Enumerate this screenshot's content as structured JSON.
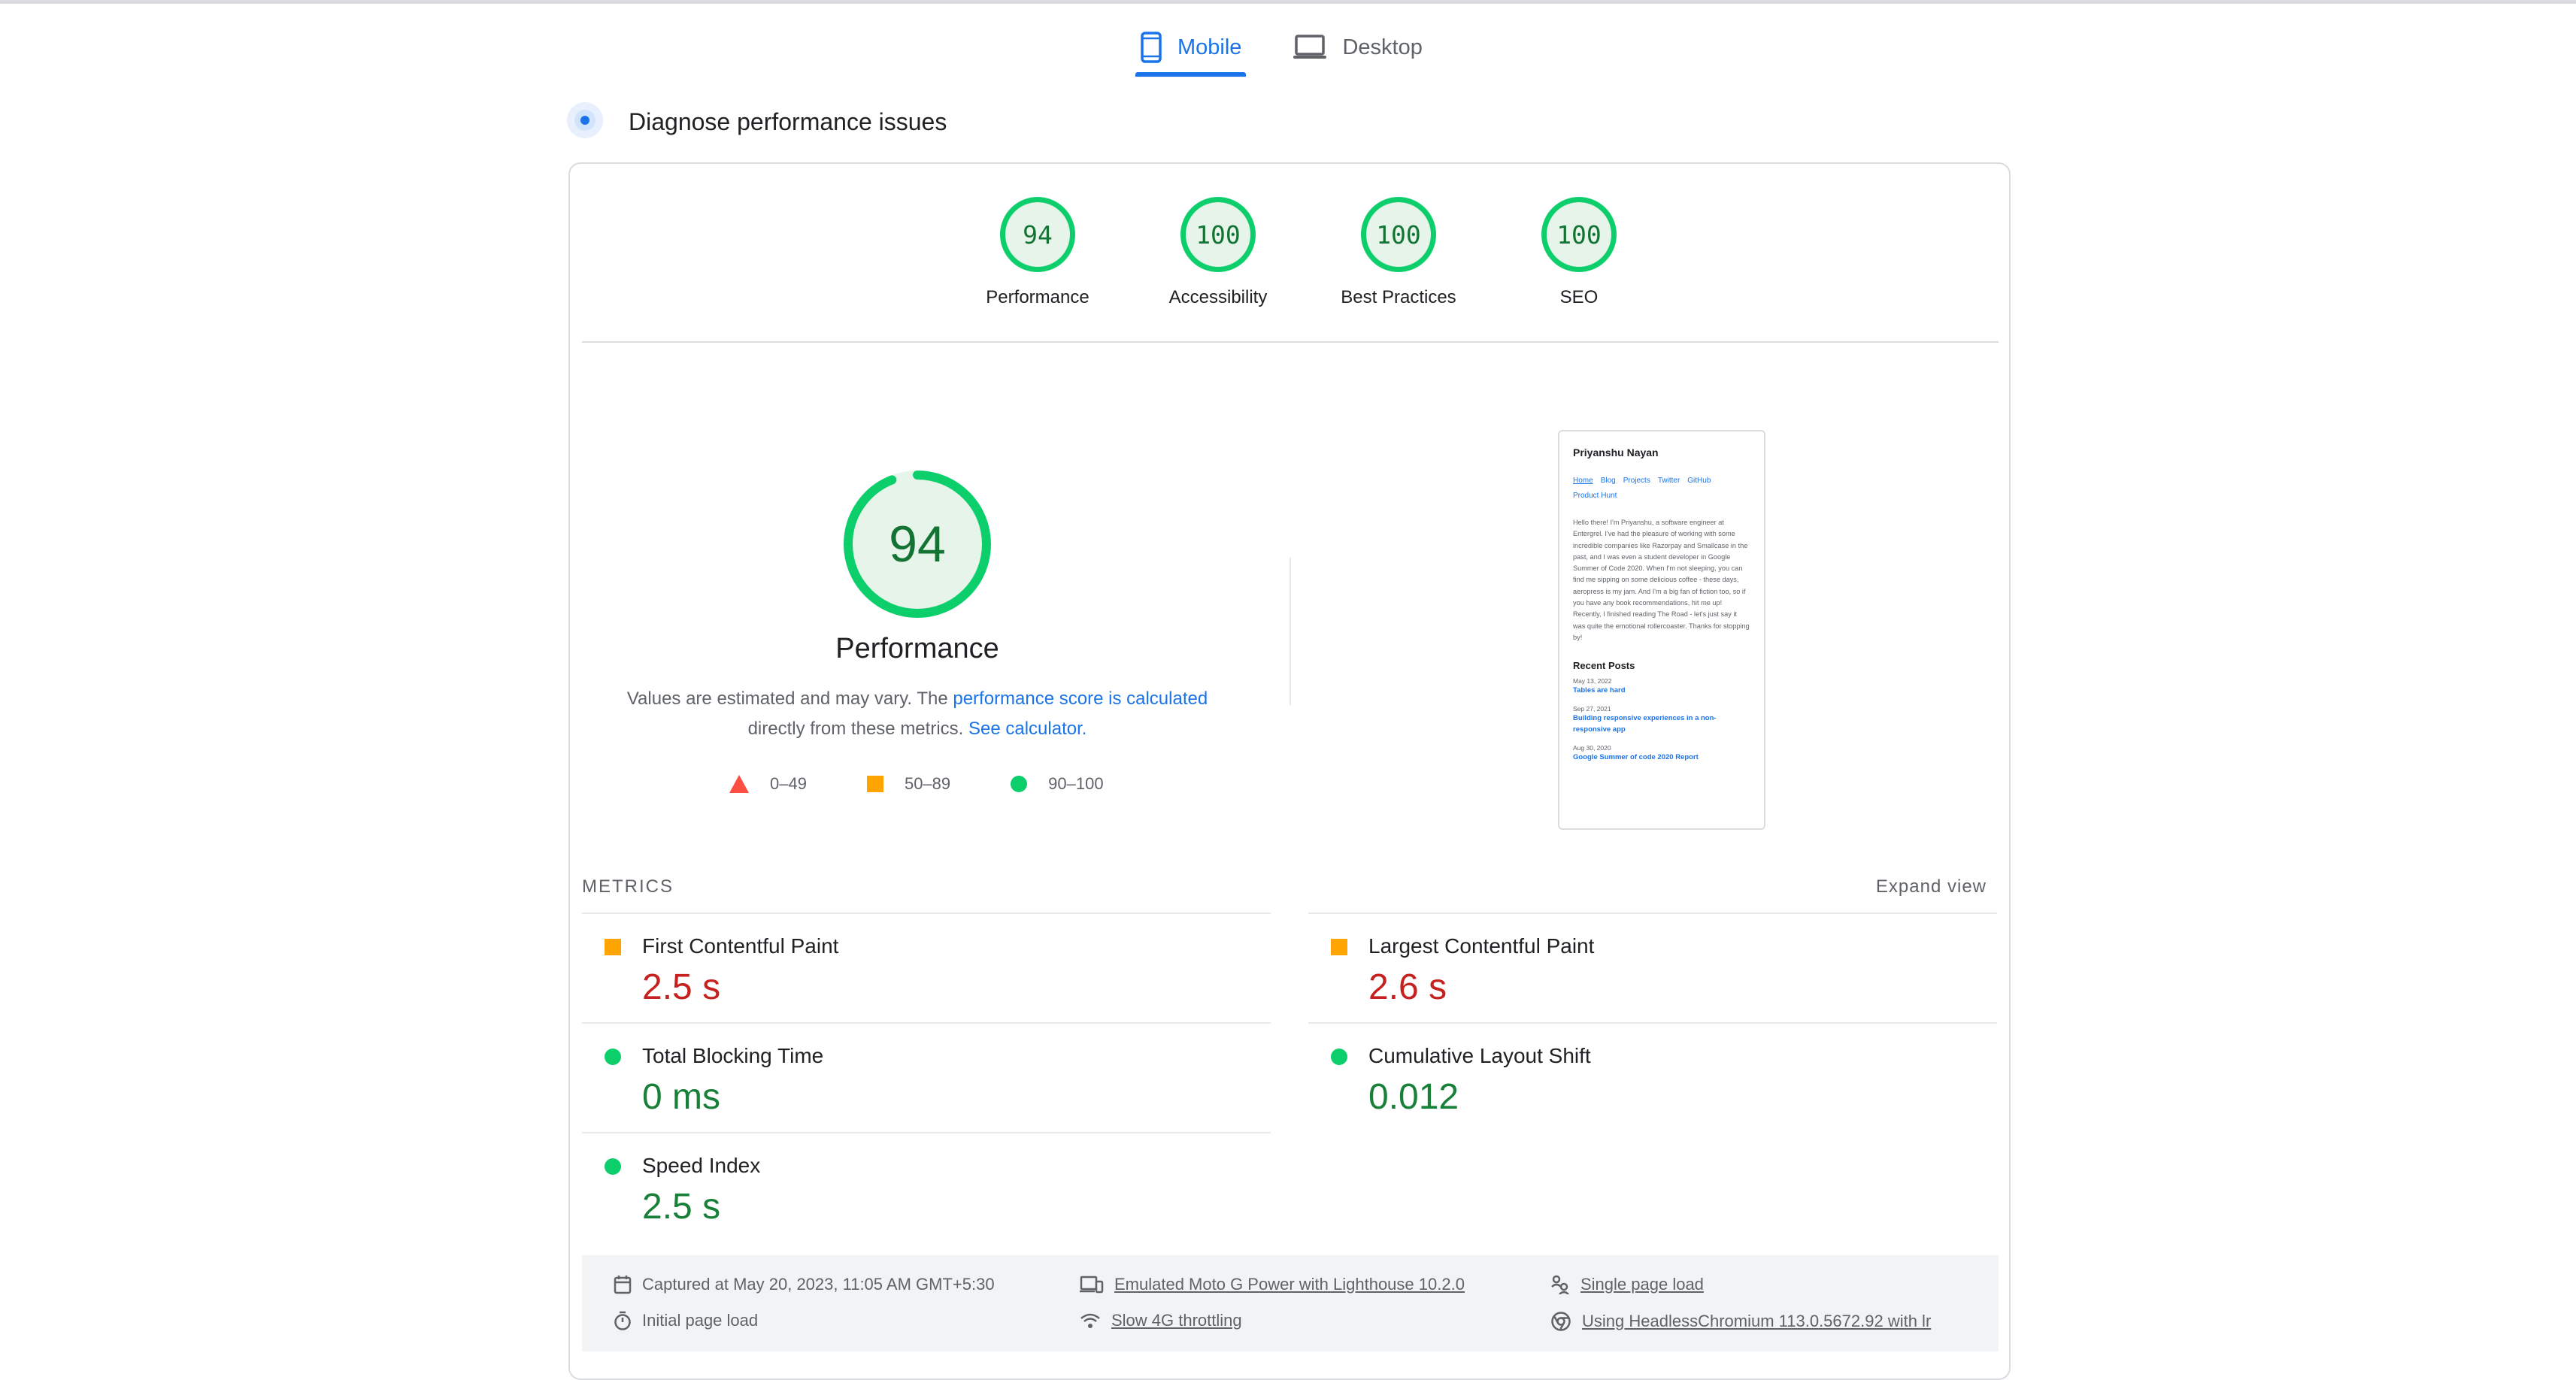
{
  "tabs": [
    {
      "label": "Mobile",
      "icon": "mobile-phone-icon",
      "active": true
    },
    {
      "label": "Desktop",
      "icon": "laptop-icon",
      "active": false
    }
  ],
  "diagnose": {
    "title": "Diagnose performance issues",
    "icon": "lighthouse-icon"
  },
  "categories": [
    {
      "score": "94",
      "label": "Performance"
    },
    {
      "score": "100",
      "label": "Accessibility"
    },
    {
      "score": "100",
      "label": "Best Practices"
    },
    {
      "score": "100",
      "label": "SEO"
    }
  ],
  "performance": {
    "score": "94",
    "score_fraction": 0.94,
    "label": "Performance",
    "desc_prefix": "Values are estimated and may vary. The ",
    "desc_link": "performance score is calculated",
    "desc_middle": " directly from these metrics. ",
    "desc_link2": "See calculator.",
    "legend": [
      {
        "shape": "triangle",
        "range": "0–49",
        "color": "#ff4e42"
      },
      {
        "shape": "square",
        "range": "50–89",
        "color": "#ffa400"
      },
      {
        "shape": "circle",
        "range": "90–100",
        "color": "#0cce6b"
      }
    ]
  },
  "screenshot": {
    "name": "Priyanshu Nayan",
    "nav": [
      "Home",
      "Blog",
      "Projects",
      "Twitter",
      "GitHub",
      "Product Hunt"
    ],
    "bio": "Hello there! I'm Priyanshu, a software engineer at Entergrel. I've had the pleasure of working with some incredible companies like Razorpay and Smallcase in the past, and I was even a student developer in Google Summer of Code 2020. When I'm not sleeping, you can find me sipping on some delicious coffee - these days, aeropress is my jam. And I'm a big fan of fiction too, so if you have any book recommendations, hit me up! Recently, I finished reading The Road - let's just say it was quite the emotional rollercoaster. Thanks for stopping by!",
    "recent_heading": "Recent Posts",
    "posts": [
      {
        "date": "May 13, 2022",
        "title": "Tables are hard"
      },
      {
        "date": "Sep 27, 2021",
        "title": "Building responsive experiences in a non-responsive app"
      },
      {
        "date": "Aug 30, 2020",
        "title": "Google Summer of code 2020 Report"
      }
    ]
  },
  "metrics": {
    "label": "METRICS",
    "expand": "Expand view",
    "left": [
      {
        "name": "First Contentful Paint",
        "value": "2.5 s",
        "status": "orange"
      },
      {
        "name": "Total Blocking Time",
        "value": "0 ms",
        "status": "green"
      },
      {
        "name": "Speed Index",
        "value": "2.5 s",
        "status": "green"
      }
    ],
    "right": [
      {
        "name": "Largest Contentful Paint",
        "value": "2.6 s",
        "status": "orange"
      },
      {
        "name": "Cumulative Layout Shift",
        "value": "0.012",
        "status": "green"
      }
    ]
  },
  "footer": {
    "captured": "Captured at May 20, 2023, 11:05 AM GMT+5:30",
    "initial_load": "Initial page load",
    "device": "Emulated Moto G Power with Lighthouse 10.2.0",
    "throttling": "Slow 4G throttling",
    "single_load": "Single page load",
    "browser": "Using HeadlessChromium 113.0.5672.92 with lr"
  },
  "colors": {
    "accent": "#1a73e8",
    "pass": "#0cce6b",
    "average": "#ffa400",
    "fail": "#ff4e42"
  }
}
